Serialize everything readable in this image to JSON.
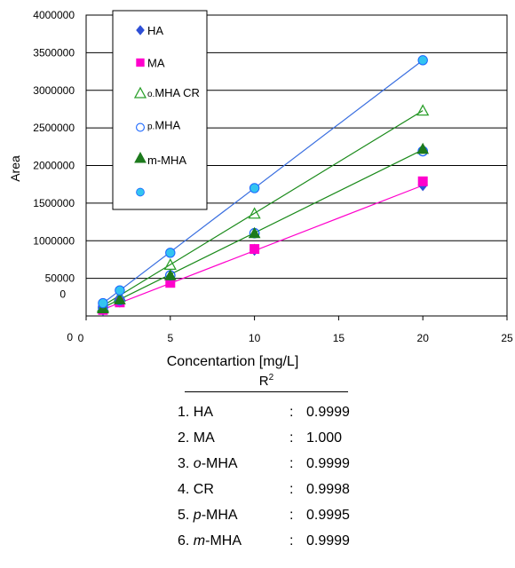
{
  "chart_data": {
    "type": "scatter",
    "xlabel": "Concentartion [mg/L]",
    "ylabel": "Area",
    "xlim": [
      0,
      25
    ],
    "ylim": [
      0,
      4000000
    ],
    "x_ticks": [
      0,
      5,
      10,
      15,
      20,
      25
    ],
    "y_ticks": [
      0,
      500000,
      1000000,
      1500000,
      2000000,
      2500000,
      3000000,
      3500000,
      4000000
    ],
    "x_tick_labels": [
      "0",
      "5",
      "10",
      "15",
      "20",
      "25"
    ],
    "y_tick_labels": [
      "0",
      "50000 0",
      "1000000",
      "1500000",
      "2000000",
      "2500000",
      "3000000",
      "3500000",
      "4000000"
    ],
    "grid": "horizontal",
    "legend_position": "top-left",
    "series": [
      {
        "name": "HA",
        "marker": "diamond",
        "filled": true,
        "color": "#2e4fd6",
        "x": [
          1,
          2,
          5,
          10,
          20
        ],
        "y": [
          80000,
          190000,
          460000,
          880000,
          1740000
        ],
        "fit": {
          "slope": 86800,
          "intercept": 0,
          "color": "#ff00cc"
        }
      },
      {
        "name": "MA",
        "marker": "square",
        "filled": true,
        "color": "#ff00cc",
        "x": [
          1,
          2,
          5,
          10,
          20
        ],
        "y": [
          80000,
          180000,
          440000,
          890000,
          1790000
        ]
      },
      {
        "name": "o.MHA  CR",
        "marker": "triangle",
        "filled": false,
        "color": "#2ca02c",
        "x": [
          1,
          2,
          5,
          10,
          20
        ],
        "y": [
          120000,
          260000,
          680000,
          1360000,
          2730000
        ],
        "fit": {
          "slope": 136500,
          "intercept": 0,
          "color": "#1a8a1a"
        }
      },
      {
        "name": "p.MHA",
        "marker": "circle",
        "filled": false,
        "color": "#1a66ff",
        "x": [
          1,
          2,
          5,
          10,
          20
        ],
        "y": [
          110000,
          210000,
          540000,
          1100000,
          2190000
        ]
      },
      {
        "name": "m-MHA",
        "marker": "triangle",
        "filled": true,
        "color": "#1d7a1d",
        "x": [
          1,
          2,
          5,
          10,
          20
        ],
        "y": [
          100000,
          220000,
          540000,
          1100000,
          2220000
        ],
        "fit": {
          "slope": 110500,
          "intercept": 0,
          "color": "#1a8a1a"
        }
      },
      {
        "name": "",
        "marker": "circle",
        "filled": true,
        "color": "#33c4f0",
        "x": [
          1,
          2,
          5,
          10,
          20
        ],
        "y": [
          170000,
          340000,
          840000,
          1700000,
          3400000
        ],
        "fit": {
          "slope": 170000,
          "intercept": 0,
          "color": "#3a6fe0"
        }
      }
    ],
    "r2_table": {
      "header": "R",
      "header_sup": "2",
      "rows": [
        {
          "num": "1.",
          "prefix": "",
          "italic": "",
          "suffix": "HA",
          "colon": ":",
          "value": "0.9999"
        },
        {
          "num": "2.",
          "prefix": "",
          "italic": "",
          "suffix": "MA",
          "colon": ":",
          "value": "1.000"
        },
        {
          "num": "3.",
          "prefix": "",
          "italic": "o",
          "suffix": "-MHA",
          "colon": ":",
          "value": "0.9999"
        },
        {
          "num": "4.",
          "prefix": "",
          "italic": "",
          "suffix": "CR",
          "colon": ":",
          "value": "0.9998"
        },
        {
          "num": "5.",
          "prefix": "",
          "italic": "p",
          "suffix": "-MHA",
          "colon": ":",
          "value": "0.9995"
        },
        {
          "num": "6.",
          "prefix": " ",
          "italic": "m",
          "suffix": "-MHA",
          "colon": ":",
          "value": "0.9999"
        }
      ]
    }
  }
}
